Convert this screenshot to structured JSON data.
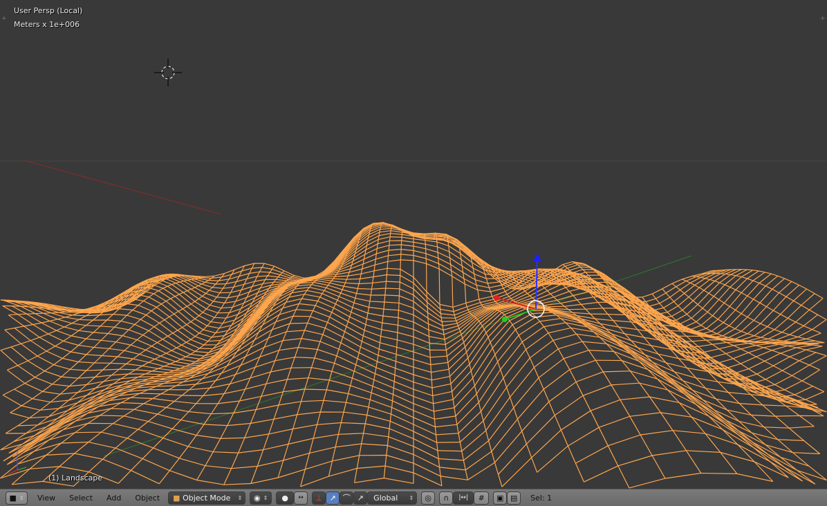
{
  "viewport": {
    "view_name": "User Persp (Local)",
    "units": "Meters x 1e+006",
    "object_label": "(1) Landscape",
    "wire_color": "#ffa64d",
    "background": "#393939"
  },
  "header": {
    "editor_type_icon": "cube-icon",
    "menus": [
      "View",
      "Select",
      "Add",
      "Object"
    ],
    "mode": "Object Mode",
    "orientation": "Global",
    "selection_status": "Sel: 1",
    "icons": [
      "viewport-shading-icon",
      "pivot-point-icon",
      "manipulator-toggle-icon",
      "translate-icon",
      "rotate-icon",
      "scale-icon",
      "proportional-edit-icon",
      "snap-icon",
      "snap-element-icon",
      "snap-target-icon",
      "render-icon",
      "animation-render-icon"
    ]
  }
}
